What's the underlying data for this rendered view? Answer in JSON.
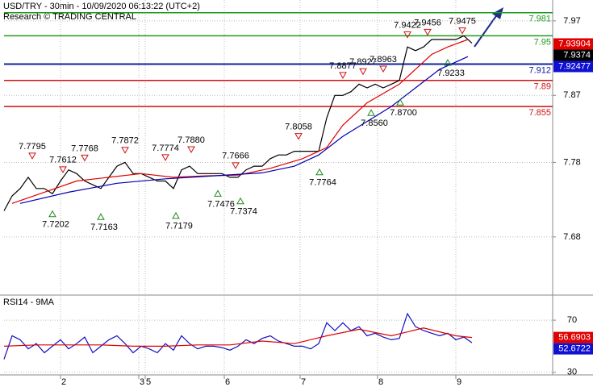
{
  "chart_data": [
    {
      "type": "line",
      "title": "USD/TRY - 30min - 10/09/2020 06:13:22 (UTC+2)",
      "subtitle": "Research © TRADING CENTRAL",
      "xlim": [
        0,
        68
      ],
      "ylim": [
        7.603,
        7.998
      ],
      "yticks": [
        7.97,
        7.87,
        7.78,
        7.68
      ],
      "xticks": [
        {
          "value": 7,
          "label": "2"
        },
        {
          "value": 16.7,
          "label": "3"
        },
        {
          "value": 17.5,
          "label": "5"
        },
        {
          "value": 27.3,
          "label": "6"
        },
        {
          "value": 36.7,
          "label": "7"
        },
        {
          "value": 46.3,
          "label": "8"
        },
        {
          "value": 56,
          "label": "9"
        }
      ],
      "grid": true,
      "series": [
        {
          "color": "#000000",
          "values": [
            7.715,
            7.735,
            7.745,
            7.76,
            7.745,
            7.745,
            7.738,
            7.755,
            7.77,
            7.765,
            7.755,
            7.75,
            7.745,
            7.76,
            7.775,
            7.78,
            7.765,
            7.765,
            7.76,
            7.755,
            7.755,
            7.745,
            7.77,
            7.775,
            7.765,
            7.765,
            7.765,
            7.765,
            7.76,
            7.76,
            7.77,
            7.775,
            7.775,
            7.785,
            7.79,
            7.79,
            7.795,
            7.795,
            7.795,
            7.795,
            7.84,
            7.87,
            7.87,
            7.875,
            7.885,
            7.88,
            7.885,
            7.88,
            7.885,
            7.89,
            7.935,
            7.93,
            7.935,
            7.945,
            7.945,
            7.945,
            7.945,
            7.95,
            7.94
          ]
        },
        {
          "color": "#e00000",
          "x": [
            1,
            5,
            9,
            13,
            17,
            21,
            25,
            29,
            33,
            37,
            40,
            42,
            45,
            49,
            51,
            53,
            55,
            57.5
          ],
          "values": [
            7.725,
            7.74,
            7.755,
            7.76,
            7.765,
            7.76,
            7.762,
            7.763,
            7.772,
            7.785,
            7.8,
            7.83,
            7.86,
            7.885,
            7.905,
            7.925,
            7.935,
            7.945
          ]
        },
        {
          "color": "#0000b0",
          "x": [
            2,
            8,
            14,
            20,
            26,
            32,
            36,
            39,
            42,
            45,
            48,
            51,
            54,
            57.5
          ],
          "values": [
            7.725,
            7.74,
            7.752,
            7.758,
            7.762,
            7.766,
            7.775,
            7.79,
            7.815,
            7.835,
            7.855,
            7.88,
            7.905,
            7.922
          ]
        }
      ],
      "levels": [
        {
          "value": 7.981,
          "color": "#1f9a1f"
        },
        {
          "value": 7.95,
          "color": "#1f9a1f"
        },
        {
          "value": 7.912,
          "color": "#1020a0"
        },
        {
          "value": 7.89,
          "color": "#d01010"
        },
        {
          "value": 7.855,
          "color": "#d01010"
        }
      ],
      "badges": [
        {
          "value": 7.93904,
          "color": "#e00000"
        },
        {
          "value": 7.9374,
          "color": "#000000"
        },
        {
          "value": 7.92477,
          "color": "#1010d0"
        }
      ],
      "annotations": [
        {
          "value": 7.7795,
          "x": 3.5,
          "kind": "high"
        },
        {
          "value": 7.7612,
          "x": 7.3,
          "kind": "high"
        },
        {
          "value": 7.7768,
          "x": 10,
          "kind": "high"
        },
        {
          "value": 7.7872,
          "x": 15,
          "kind": "high"
        },
        {
          "value": 7.7774,
          "x": 20,
          "kind": "high"
        },
        {
          "value": 7.788,
          "label": "7.7880",
          "x": 23.2,
          "kind": "high"
        },
        {
          "value": 7.7666,
          "x": 28.7,
          "kind": "high"
        },
        {
          "value": 7.8058,
          "x": 36.5,
          "kind": "high"
        },
        {
          "value": 7.8877,
          "x": 42,
          "kind": "high"
        },
        {
          "value": 7.8927,
          "x": 44.5,
          "kind": "high"
        },
        {
          "value": 7.8963,
          "x": 47,
          "kind": "high"
        },
        {
          "value": 7.9422,
          "x": 50,
          "kind": "high"
        },
        {
          "value": 7.9456,
          "x": 52.5,
          "kind": "high"
        },
        {
          "value": 7.9475,
          "x": 56.8,
          "kind": "high"
        },
        {
          "value": 7.7202,
          "x": 6,
          "kind": "low"
        },
        {
          "value": 7.7163,
          "x": 12,
          "kind": "low"
        },
        {
          "value": 7.7179,
          "x": 21.3,
          "kind": "low"
        },
        {
          "value": 7.7476,
          "x": 26.5,
          "kind": "low"
        },
        {
          "value": 7.7374,
          "x": 29.3,
          "kind": "low"
        },
        {
          "value": 7.7764,
          "x": 39.1,
          "kind": "low"
        },
        {
          "value": 7.856,
          "label": "7.8560",
          "x": 45.5,
          "kind": "low"
        },
        {
          "value": 7.87,
          "label": "7.8700",
          "x": 49.1,
          "kind": "low"
        },
        {
          "value": 7.9233,
          "x": 55,
          "kind": "low"
        }
      ]
    },
    {
      "type": "line",
      "title": "RSI14 - 9MA",
      "xlim": [
        0,
        68
      ],
      "ylim": [
        28,
        88
      ],
      "yticks": [
        70,
        30
      ],
      "grid": true,
      "series": [
        {
          "color": "#1010c0",
          "values": [
            40,
            58,
            55,
            48,
            52,
            45,
            50,
            55,
            48,
            52,
            57,
            45,
            50,
            55,
            58,
            52,
            45,
            50,
            48,
            45,
            52,
            47,
            58,
            52,
            48,
            50,
            50,
            49,
            47,
            50,
            55,
            52,
            56,
            58,
            54,
            52,
            50,
            50,
            48,
            52,
            68,
            62,
            68,
            62,
            65,
            58,
            60,
            57,
            55,
            56,
            75,
            65,
            62,
            60,
            58,
            60,
            55,
            57,
            52.6722
          ]
        },
        {
          "color": "#e00000",
          "x": [
            0,
            4,
            8,
            12,
            16,
            20,
            24,
            28,
            32,
            36,
            40,
            44,
            48,
            52,
            56,
            58
          ],
          "values": [
            50,
            51,
            51,
            51,
            50,
            50,
            51,
            51,
            54,
            52,
            58,
            63,
            58,
            64,
            58,
            56.6903
          ]
        }
      ],
      "badges": [
        {
          "value": 56.6903,
          "color": "#e00000"
        },
        {
          "value": 52.6722,
          "color": "#1010d0"
        }
      ]
    }
  ]
}
